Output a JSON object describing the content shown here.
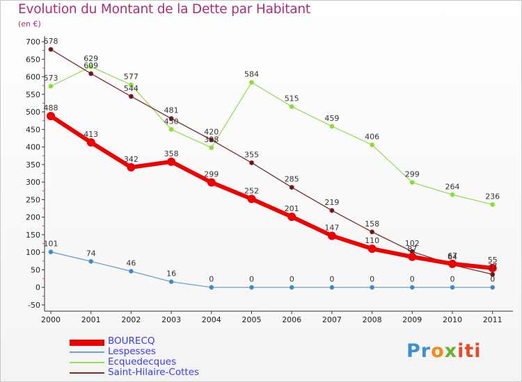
{
  "title": "Evolution du Montant de la Dette par Habitant",
  "unit": "(en €)",
  "chart_data": {
    "type": "line",
    "title": "Evolution du Montant de la Dette par Habitant",
    "ylabel": "(en €)",
    "xlabel": "",
    "ylim": [
      -50,
      700
    ],
    "grid": false,
    "legend_position": "bottom-left",
    "yticks": [
      "-50",
      "0",
      "50",
      "100",
      "150",
      "200",
      "250",
      "300",
      "350",
      "400",
      "450",
      "500",
      "550",
      "600",
      "650",
      "700"
    ],
    "categories": [
      "2000",
      "2001",
      "2002",
      "2003",
      "2004",
      "2005",
      "2006",
      "2007",
      "2008",
      "2009",
      "2010",
      "2011"
    ],
    "series": [
      {
        "name": "BOURECQ",
        "color": "#ee0000",
        "values": [
          488,
          413,
          342,
          358,
          299,
          252,
          201,
          147,
          110,
          87,
          67,
          55
        ]
      },
      {
        "name": "Lespesses",
        "color": "#6a9fd0",
        "values": [
          101,
          74,
          46,
          16,
          0,
          0,
          0,
          0,
          0,
          0,
          0,
          0
        ]
      },
      {
        "name": "Ecquedecques",
        "color": "#99dd55",
        "values": [
          573,
          629,
          577,
          450,
          398,
          584,
          515,
          459,
          406,
          299,
          264,
          236
        ]
      },
      {
        "name": "Saint-Hilaire-Cottes",
        "color": "#7a2a2a",
        "values": [
          678,
          609,
          544,
          481,
          420,
          355,
          285,
          219,
          158,
          102,
          64,
          37
        ]
      }
    ]
  },
  "legend": [
    {
      "label": "BOURECQ"
    },
    {
      "label": "Lespesses"
    },
    {
      "label": "Ecquedecques"
    },
    {
      "label": "Saint-Hilaire-Cottes"
    }
  ],
  "logo": {
    "text": "Proxiti",
    "parts": [
      "Pr",
      "o",
      "x",
      "iti"
    ]
  }
}
